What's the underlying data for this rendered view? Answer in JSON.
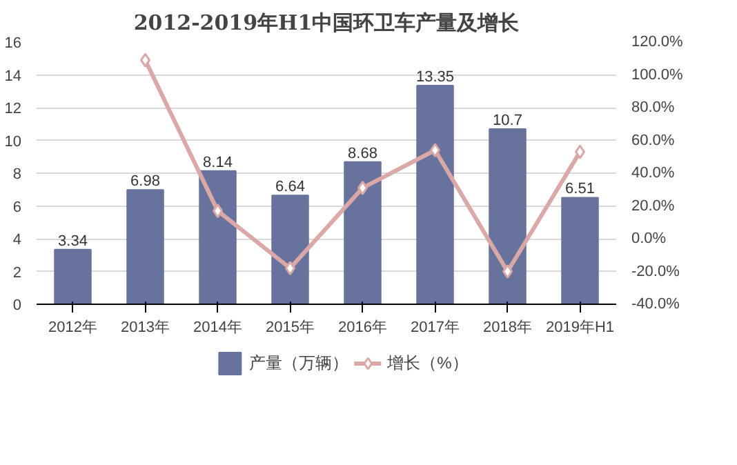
{
  "chart_data": {
    "type": "bar",
    "title": "2012-2019年H1中国环卫车产量及增长",
    "categories": [
      "2012年",
      "2013年",
      "2014年",
      "2015年",
      "2016年",
      "2017年",
      "2018年",
      "2019年H1"
    ],
    "series": [
      {
        "name": "产量（万辆）",
        "color": "#68739d",
        "values": [
          3.34,
          6.98,
          8.14,
          6.64,
          8.68,
          13.35,
          10.7,
          6.51
        ],
        "value_labels": [
          "3.34",
          "6.98",
          "8.14",
          "6.64",
          "8.68",
          "13.35",
          "10.7",
          "6.51"
        ]
      },
      {
        "name": "增长（%）",
        "type": "line",
        "axis": "y2",
        "color": "#dba8a8",
        "marker": "diamond",
        "values": [
          null,
          109,
          17,
          -18,
          31,
          54,
          -20,
          53
        ]
      }
    ],
    "ylim": [
      0,
      16
    ],
    "yticks": [
      0,
      2,
      4,
      6,
      8,
      10,
      12,
      14,
      16
    ],
    "y2lim": [
      -40,
      120
    ],
    "y2ticks": [
      {
        "value": -40,
        "label": "-40.0%"
      },
      {
        "value": -20,
        "label": "-20.0%"
      },
      {
        "value": 0,
        "label": "0.0%"
      },
      {
        "value": 20,
        "label": "20.0%"
      },
      {
        "value": 40,
        "label": "40.0%"
      },
      {
        "value": 60,
        "label": "60.0%"
      },
      {
        "value": 80,
        "label": "80.0%"
      },
      {
        "value": 100,
        "label": "100.0%"
      },
      {
        "value": 120,
        "label": "120.0%"
      }
    ],
    "grid": "y",
    "legend": "bottom"
  }
}
